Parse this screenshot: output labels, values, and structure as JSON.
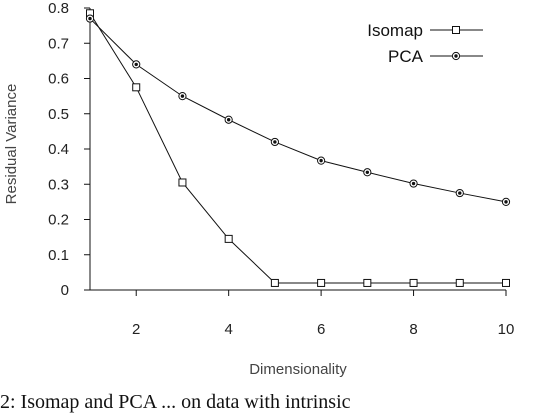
{
  "chart_data": {
    "type": "line",
    "xlabel": "Dimensionality",
    "ylabel": "Residual Variance",
    "xlim": [
      1,
      10
    ],
    "ylim": [
      0,
      0.8
    ],
    "x_ticks": [
      2,
      4,
      6,
      8,
      10
    ],
    "y_ticks": [
      0,
      0.1,
      0.2,
      0.3,
      0.4,
      0.5,
      0.6,
      0.7,
      0.8
    ],
    "x": [
      1,
      2,
      3,
      4,
      5,
      6,
      7,
      8,
      9,
      10
    ],
    "series": [
      {
        "name": "Isomap",
        "marker": "square",
        "values": [
          0.785,
          0.575,
          0.305,
          0.145,
          0.02,
          0.02,
          0.02,
          0.02,
          0.02,
          0.02
        ]
      },
      {
        "name": "PCA",
        "marker": "circle-dot",
        "values": [
          0.77,
          0.64,
          0.55,
          0.483,
          0.42,
          0.367,
          0.334,
          0.302,
          0.275,
          0.25
        ]
      }
    ],
    "grid": false,
    "legend_position": "top-right",
    "line_color": "#111111"
  },
  "caption": "2: Isomap and PCA ... on data with intrinsic"
}
